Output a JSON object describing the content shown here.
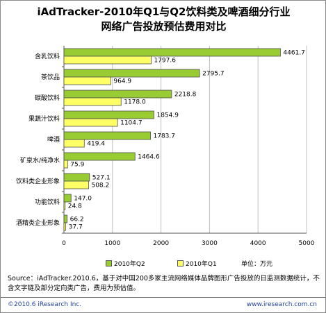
{
  "title_line1": "iAdTracker-2010年Q1与Q2饮料类及啤酒细分行业",
  "title_line2": "网络广告投放预估费用对比",
  "legend": {
    "q2": "2010年Q2",
    "q1": "2010年Q1"
  },
  "unit": "单位：万元",
  "source": "Source：iAdTracker.2010.6，基于对中国200多家主流网络媒体品牌图形广告投放的日监测数据统计，不含文字链及部分定向类广告，费用为预估值。",
  "copyright": "©2010.6 iResearch Inc.",
  "url": "www.iresearch.com.cn",
  "colors": {
    "q2": "#99cc33",
    "q1": "#ffff66",
    "grid": "#bfbfbf",
    "axis": "#555555"
  },
  "chart_data": {
    "type": "bar",
    "orientation": "horizontal",
    "title": "iAdTracker-2010年Q1与Q2饮料类及啤酒细分行业网络广告投放预估费用对比",
    "categories": [
      "含乳饮料",
      "茶饮品",
      "碳酸饮料",
      "果蔬汁饮料",
      "啤酒",
      "矿泉水/纯净水",
      "饮料类企业形象",
      "功能饮料",
      "酒精类企业形象"
    ],
    "series": [
      {
        "name": "2010年Q2",
        "values": [
          4461.7,
          2795.7,
          2218.8,
          1854.9,
          1783.7,
          1464.6,
          527.1,
          147.0,
          66.2
        ]
      },
      {
        "name": "2010年Q1",
        "values": [
          1797.6,
          964.9,
          1178.0,
          1104.7,
          419.4,
          75.9,
          508.2,
          24.8,
          37.7
        ]
      }
    ],
    "value_labels": {
      "q2": [
        "4461.7",
        "2795.7",
        "2218.8",
        "1854.9",
        "1783.7",
        "1464.6",
        "527.1",
        "147.0",
        "66.2"
      ],
      "q1": [
        "1797.6",
        "964.9",
        "1178.0",
        "1104.7",
        "419.4",
        "75.9",
        "508.2",
        "24.8",
        "37.7"
      ]
    },
    "xlim": [
      0,
      5000
    ],
    "xticks": [
      0,
      1000,
      2000,
      3000,
      4000,
      5000
    ],
    "grid": true,
    "legend_position": "bottom"
  }
}
